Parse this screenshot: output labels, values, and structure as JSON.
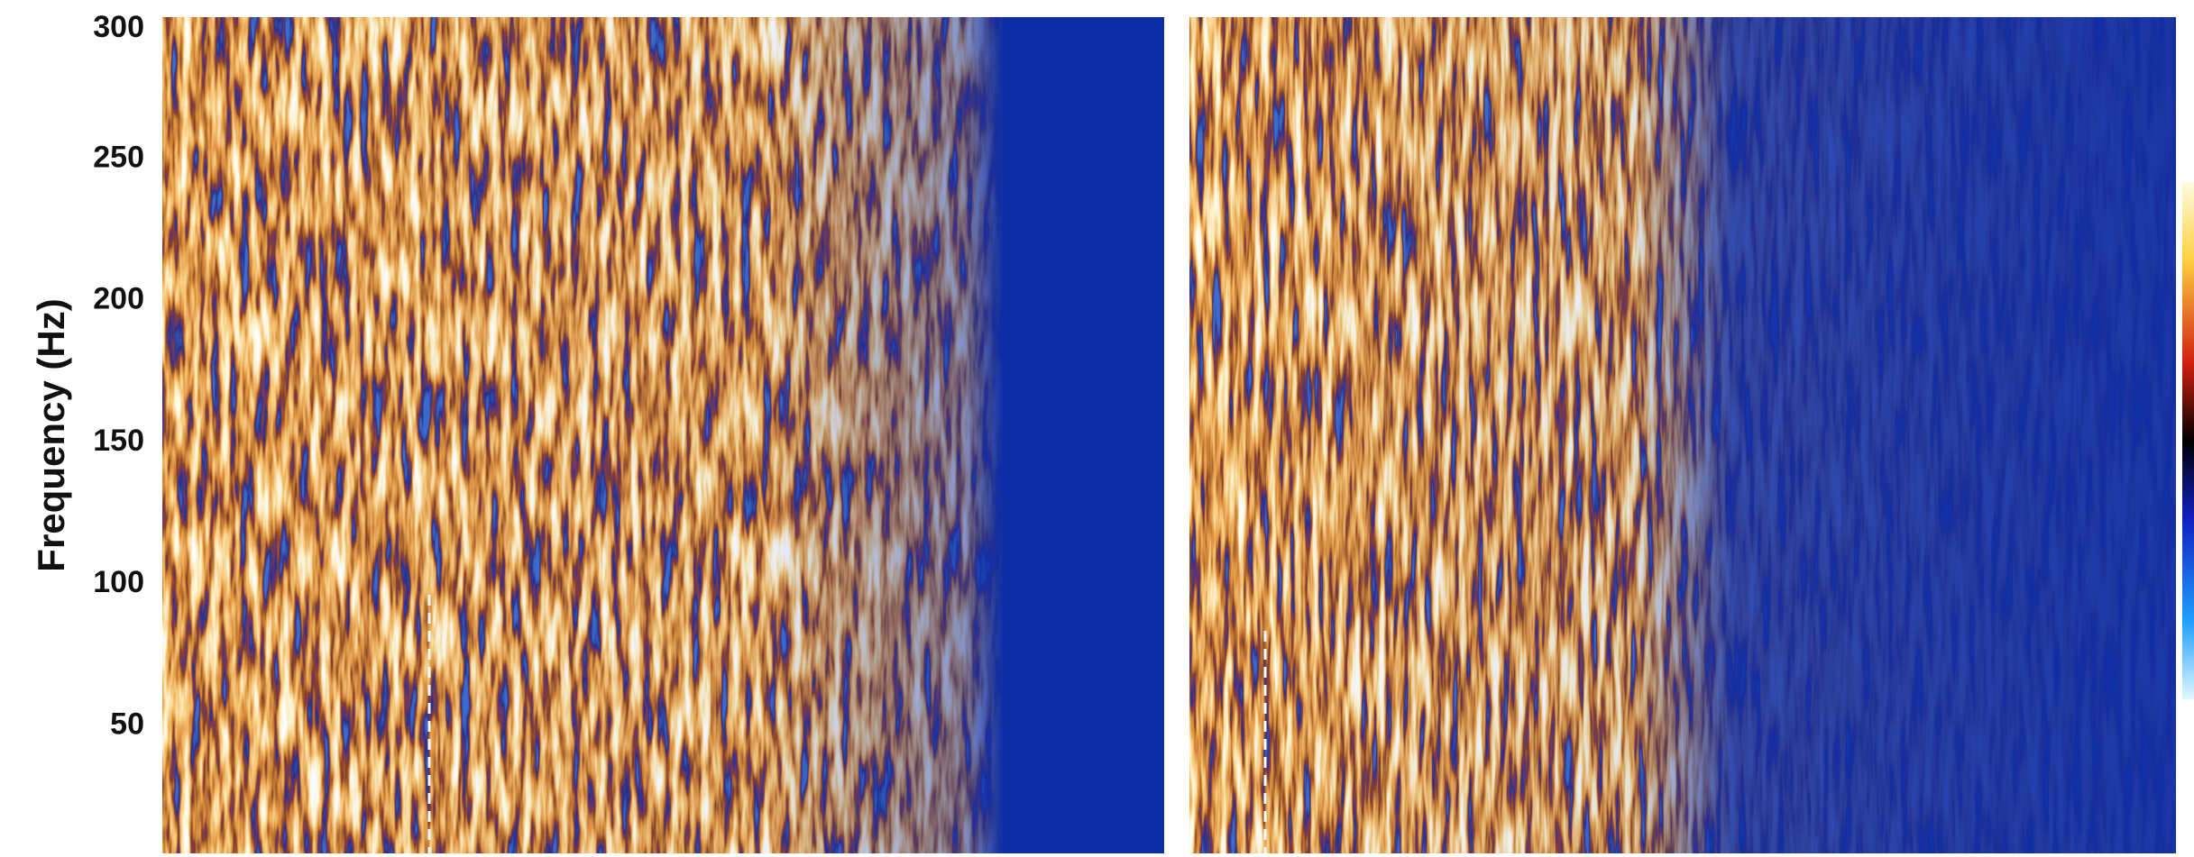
{
  "chart_data": {
    "type": "spectrogram",
    "y_label": "Frequency (Hz)",
    "ylim": [
      5,
      300
    ],
    "yticks": [
      50,
      100,
      150,
      200,
      250,
      300
    ]
  }
}
